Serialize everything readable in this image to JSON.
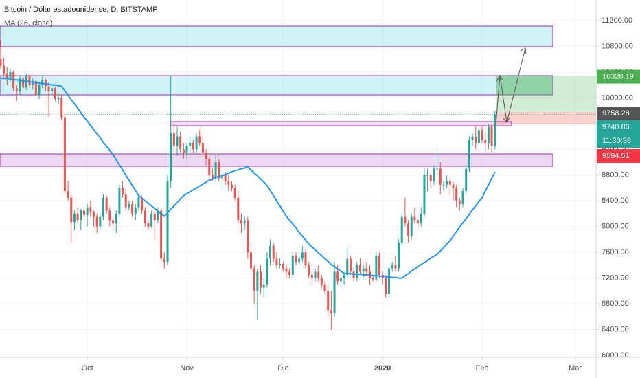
{
  "chart_data": {
    "type": "candlestick",
    "title": "Bitcoin / Dólar estadounidense, D, BITSTAMP",
    "indicator": {
      "name": "MA (26, close)",
      "color": "#2196f3",
      "values": [
        10310,
        10300,
        10300,
        10290,
        10280,
        10280,
        10270,
        10260,
        10260,
        10250,
        10240,
        10240,
        10230,
        10220,
        10220,
        10210,
        10200,
        10200,
        10190,
        10180,
        10110,
        10040,
        9970,
        9910,
        9840,
        9770,
        9700,
        9640,
        9570,
        9510,
        9440,
        9380,
        9310,
        9250,
        9180,
        9120,
        9040,
        8960,
        8880,
        8800,
        8720,
        8640,
        8560,
        8480,
        8440,
        8400,
        8360,
        8320,
        8280,
        8240,
        8200,
        8160,
        8210,
        8270,
        8320,
        8370,
        8430,
        8480,
        8510,
        8540,
        8570,
        8600,
        8630,
        8660,
        8690,
        8720,
        8740,
        8760,
        8780,
        8790,
        8810,
        8830,
        8850,
        8870,
        8880,
        8900,
        8910,
        8930,
        8880,
        8830,
        8790,
        8740,
        8690,
        8640,
        8560,
        8480,
        8400,
        8320,
        8240,
        8160,
        8100,
        8040,
        7980,
        7910,
        7850,
        7790,
        7730,
        7680,
        7640,
        7590,
        7550,
        7500,
        7460,
        7410,
        7380,
        7340,
        7310,
        7270,
        7270,
        7270,
        7260,
        7260,
        7260,
        7250,
        7250,
        7250,
        7240,
        7240,
        7230,
        7230,
        7220,
        7220,
        7210,
        7210,
        7200,
        7200,
        7240,
        7270,
        7310,
        7340,
        7380,
        7410,
        7440,
        7470,
        7510,
        7540,
        7570,
        7620,
        7670,
        7730,
        7780,
        7850,
        7920,
        7990,
        8060,
        8120,
        8190,
        8260,
        8320,
        8390,
        8450,
        8550,
        8650,
        8750,
        8850
      ]
    },
    "up_color": "#26a69a",
    "down_color": "#ef5350",
    "ohlc": [
      [
        10600,
        10900,
        10450,
        10500
      ],
      [
        10500,
        10620,
        10300,
        10380
      ],
      [
        10380,
        10480,
        10200,
        10310
      ],
      [
        10310,
        10450,
        10250,
        10400
      ],
      [
        10400,
        10420,
        10100,
        10150
      ],
      [
        10150,
        10200,
        9950,
        10100
      ],
      [
        10100,
        10350,
        10050,
        10300
      ],
      [
        10300,
        10330,
        10130,
        10160
      ],
      [
        10160,
        10380,
        10120,
        10350
      ],
      [
        10350,
        10360,
        10150,
        10200
      ],
      [
        10200,
        10300,
        10130,
        10260
      ],
      [
        10260,
        10280,
        10020,
        10050
      ],
      [
        10050,
        10250,
        9980,
        10200
      ],
      [
        10200,
        10330,
        10150,
        10280
      ],
      [
        10280,
        10300,
        10100,
        10180
      ],
      [
        10180,
        10250,
        9700,
        10100
      ],
      [
        10100,
        10200,
        10050,
        10150
      ],
      [
        10150,
        10180,
        9950,
        9980
      ],
      [
        9980,
        10050,
        9900,
        10000
      ],
      [
        10000,
        10050,
        9650,
        9700
      ],
      [
        9700,
        9750,
        8500,
        8550
      ],
      [
        8550,
        8700,
        8400,
        8450
      ],
      [
        8450,
        8500,
        7750,
        8070
      ],
      [
        8070,
        8250,
        7950,
        8200
      ],
      [
        8200,
        8300,
        8050,
        8100
      ],
      [
        8100,
        8280,
        7950,
        8250
      ],
      [
        8250,
        8300,
        8100,
        8180
      ],
      [
        8180,
        8350,
        8000,
        8300
      ],
      [
        8300,
        8400,
        8150,
        8230
      ],
      [
        8230,
        8250,
        8000,
        8150
      ],
      [
        8150,
        8200,
        7900,
        8000
      ],
      [
        8000,
        8200,
        7950,
        8150
      ],
      [
        8150,
        8500,
        8100,
        8450
      ],
      [
        8450,
        8480,
        8200,
        8250
      ],
      [
        8250,
        8300,
        8000,
        8100
      ],
      [
        8100,
        8150,
        7950,
        8050
      ],
      [
        8050,
        8250,
        7900,
        8200
      ],
      [
        8200,
        8650,
        8150,
        8600
      ],
      [
        8600,
        8700,
        8450,
        8500
      ],
      [
        8500,
        8600,
        8250,
        8300
      ],
      [
        8300,
        8400,
        8250,
        8350
      ],
      [
        8350,
        8400,
        8150,
        8200
      ],
      [
        8200,
        8350,
        8100,
        8300
      ],
      [
        8300,
        8500,
        8250,
        8450
      ],
      [
        8450,
        8480,
        8200,
        8250
      ],
      [
        8250,
        8300,
        8000,
        8050
      ],
      [
        8050,
        8100,
        7950,
        8000
      ],
      [
        8000,
        8250,
        7980,
        8200
      ],
      [
        8200,
        8250,
        7800,
        8100
      ],
      [
        8100,
        8300,
        8050,
        8250
      ],
      [
        8250,
        8300,
        7450,
        7500
      ],
      [
        7500,
        7600,
        7350,
        7450
      ],
      [
        7450,
        8800,
        7400,
        8700
      ],
      [
        8700,
        10350,
        8600,
        9450
      ],
      [
        9450,
        9600,
        9100,
        9250
      ],
      [
        9250,
        9550,
        9100,
        9400
      ],
      [
        9400,
        9480,
        9150,
        9200
      ],
      [
        9200,
        9300,
        9050,
        9150
      ],
      [
        9150,
        9300,
        9050,
        9250
      ],
      [
        9250,
        9400,
        9150,
        9300
      ],
      [
        9300,
        9350,
        9150,
        9200
      ],
      [
        9200,
        9450,
        9150,
        9400
      ],
      [
        9400,
        9500,
        9250,
        9300
      ],
      [
        9300,
        9450,
        9100,
        9150
      ],
      [
        9150,
        9200,
        8950,
        9050
      ],
      [
        9050,
        9100,
        8750,
        8800
      ],
      [
        8800,
        8900,
        8700,
        8750
      ],
      [
        8750,
        9100,
        8700,
        9000
      ],
      [
        9000,
        9050,
        8700,
        8750
      ],
      [
        8750,
        8850,
        8600,
        8800
      ],
      [
        8800,
        8850,
        8650,
        8700
      ],
      [
        8700,
        8800,
        8550,
        8650
      ],
      [
        8650,
        8700,
        8550,
        8600
      ],
      [
        8600,
        8650,
        8400,
        8450
      ],
      [
        8450,
        8550,
        8050,
        8100
      ],
      [
        8100,
        8200,
        7900,
        8050
      ],
      [
        8050,
        8150,
        7950,
        8100
      ],
      [
        8100,
        8150,
        7500,
        7600
      ],
      [
        7600,
        7700,
        7300,
        7350
      ],
      [
        7350,
        7400,
        6800,
        7000
      ],
      [
        7000,
        7350,
        6550,
        7300
      ],
      [
        7300,
        7400,
        6950,
        7050
      ],
      [
        7050,
        7200,
        6900,
        7100
      ],
      [
        7100,
        7600,
        7050,
        7500
      ],
      [
        7500,
        7800,
        7400,
        7700
      ],
      [
        7700,
        7750,
        7450,
        7500
      ],
      [
        7500,
        7600,
        7350,
        7400
      ],
      [
        7400,
        7500,
        7350,
        7420
      ],
      [
        7420,
        7450,
        7300,
        7350
      ],
      [
        7350,
        7400,
        7200,
        7300
      ],
      [
        7300,
        7350,
        7200,
        7250
      ],
      [
        7250,
        7600,
        7200,
        7550
      ],
      [
        7550,
        7600,
        7400,
        7450
      ],
      [
        7450,
        7550,
        7400,
        7500
      ],
      [
        7500,
        7700,
        7450,
        7600
      ],
      [
        7600,
        7650,
        7350,
        7400
      ],
      [
        7400,
        7450,
        7200,
        7250
      ],
      [
        7250,
        7300,
        7100,
        7200
      ],
      [
        7200,
        7350,
        7150,
        7300
      ],
      [
        7300,
        7400,
        7150,
        7200
      ],
      [
        7200,
        7250,
        7050,
        7100
      ],
      [
        7100,
        7150,
        6950,
        7000
      ],
      [
        7000,
        7100,
        6600,
        6700
      ],
      [
        6700,
        7000,
        6400,
        6650
      ],
      [
        6650,
        7450,
        6600,
        7300
      ],
      [
        7300,
        7400,
        7100,
        7150
      ],
      [
        7150,
        7250,
        7050,
        7200
      ],
      [
        7200,
        7300,
        7100,
        7250
      ],
      [
        7250,
        7700,
        7200,
        7500
      ],
      [
        7500,
        7550,
        7250,
        7300
      ],
      [
        7300,
        7350,
        7150,
        7200
      ],
      [
        7200,
        7450,
        7150,
        7400
      ],
      [
        7400,
        7500,
        7250,
        7300
      ],
      [
        7300,
        7400,
        7200,
        7350
      ],
      [
        7350,
        7450,
        7250,
        7300
      ],
      [
        7300,
        7400,
        7100,
        7200
      ],
      [
        7200,
        7250,
        7150,
        7180
      ],
      [
        7180,
        7600,
        7150,
        7550
      ],
      [
        7550,
        7600,
        7200,
        7250
      ],
      [
        7250,
        7300,
        7100,
        7200
      ],
      [
        7200,
        7250,
        6900,
        6950
      ],
      [
        6950,
        7400,
        6880,
        7350
      ],
      [
        7350,
        7450,
        7300,
        7400
      ],
      [
        7400,
        7550,
        7300,
        7350
      ],
      [
        7350,
        7800,
        7300,
        7750
      ],
      [
        7750,
        8200,
        7700,
        8150
      ],
      [
        8150,
        8450,
        8000,
        8050
      ],
      [
        8050,
        8100,
        7750,
        7850
      ],
      [
        7850,
        8200,
        7800,
        8150
      ],
      [
        8150,
        8300,
        8050,
        8100
      ],
      [
        8100,
        8200,
        7950,
        8050
      ],
      [
        8050,
        8300,
        8000,
        8200
      ],
      [
        8200,
        8900,
        8150,
        8800
      ],
      [
        8800,
        8900,
        8550,
        8800
      ],
      [
        8800,
        8850,
        8600,
        8700
      ],
      [
        8700,
        8950,
        8650,
        8900
      ],
      [
        8900,
        9150,
        8800,
        8900
      ],
      [
        8900,
        9000,
        8500,
        8650
      ],
      [
        8650,
        8700,
        8550,
        8650
      ],
      [
        8650,
        8800,
        8600,
        8700
      ],
      [
        8700,
        8750,
        8500,
        8650
      ],
      [
        8650,
        8700,
        8400,
        8600
      ],
      [
        8600,
        8650,
        8300,
        8400
      ],
      [
        8400,
        8450,
        8250,
        8350
      ],
      [
        8350,
        8600,
        8300,
        8550
      ],
      [
        8550,
        8950,
        8500,
        8900
      ],
      [
        8900,
        9400,
        8850,
        9350
      ],
      [
        9350,
        9450,
        9250,
        9400
      ],
      [
        9400,
        9550,
        9200,
        9300
      ],
      [
        9300,
        9550,
        9250,
        9500
      ],
      [
        9500,
        9550,
        9300,
        9350
      ],
      [
        9350,
        9450,
        9150,
        9300
      ],
      [
        9300,
        9600,
        9200,
        9550
      ],
      [
        9550,
        9600,
        9150,
        9250
      ],
      [
        9250,
        9800,
        9200,
        9740.86
      ]
    ],
    "xlim": [
      -0.2,
      185.5
    ],
    "xticks": [
      {
        "value": 27,
        "label": "Oct"
      },
      {
        "value": 58,
        "label": "Nov"
      },
      {
        "value": 88,
        "label": "Dic"
      },
      {
        "value": 119,
        "label": "2020"
      },
      {
        "value": 150,
        "label": "Feb"
      },
      {
        "value": 179,
        "label": "Mar"
      }
    ],
    "ylim": [
      5968,
      11520
    ],
    "yticks": [
      {
        "value": 6000,
        "label": "6000.00"
      },
      {
        "value": 6400,
        "label": "6400.00"
      },
      {
        "value": 6800,
        "label": "6800.00"
      },
      {
        "value": 7200,
        "label": "7200.00"
      },
      {
        "value": 7600,
        "label": "7600.00"
      },
      {
        "value": 8000,
        "label": "8000.00"
      },
      {
        "value": 8400,
        "label": "8400.00"
      },
      {
        "value": 8800,
        "label": "8800.00"
      },
      {
        "value": 9200,
        "label": "9200.00"
      },
      {
        "value": 9600,
        "label": "9600.00"
      },
      {
        "value": 10000,
        "label": "10000.00"
      },
      {
        "value": 10400,
        "label": "10400.00"
      },
      {
        "value": 10800,
        "label": "10800.00"
      },
      {
        "value": 11200,
        "label": "11200.00"
      }
    ],
    "grid": true,
    "price_labels": [
      {
        "value": 10328.19,
        "label": "10328.19",
        "color": "#4caf50"
      },
      {
        "value": 9758.28,
        "label": "9758.28",
        "color": "#555555"
      },
      {
        "value": 9740.86,
        "label": "9740.86",
        "color": "#26a69a"
      },
      {
        "value": 9594.51,
        "label": "9594.51",
        "color": "#f23645"
      }
    ],
    "countdown": "11:30:38"
  }
}
